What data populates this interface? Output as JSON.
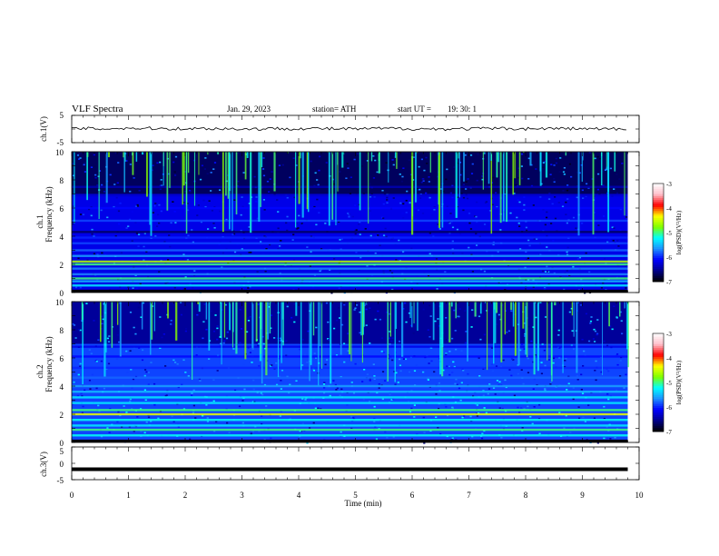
{
  "header": {
    "title": "VLF  Spectra",
    "date": "Jan. 29, 2023",
    "station": "station= ATH",
    "start_label": "start  UT  =",
    "start_time": "19: 30: 1"
  },
  "colors": {
    "colormap": [
      "#000000",
      "#00008b",
      "#0000ff",
      "#1e90ff",
      "#00ffff",
      "#7fff00",
      "#ffff00",
      "#ff0000",
      "#ffc0cb",
      "#ffffff"
    ],
    "trace": "#000000"
  },
  "chart_data": [
    {
      "type": "line",
      "panel": "ch1-waveform",
      "ylabel": "ch.1(V)",
      "ylim": [
        -5,
        5
      ],
      "yticks": [
        "5",
        "-5"
      ],
      "x": [
        0,
        0.5,
        1,
        1.5,
        2,
        2.5,
        3,
        3.5,
        4,
        4.5,
        5,
        5.5,
        6,
        6.5,
        7,
        7.5,
        8,
        8.5,
        9,
        9.5,
        9.8
      ],
      "y": [
        0.2,
        0.1,
        0.3,
        0.2,
        0.1,
        0.2,
        0.0,
        0.1,
        0.2,
        0.1,
        0.0,
        0.2,
        0.1,
        0.0,
        0.1,
        0.2,
        0.1,
        0.2,
        0.1,
        0.0,
        -0.1
      ]
    },
    {
      "type": "heatmap",
      "panel": "ch1-spectrogram",
      "ylabel_top": "ch.1",
      "ylabel": "Frequency  (kHz)",
      "ylim": [
        0,
        10
      ],
      "yticks": [
        "0",
        "2",
        "4",
        "6",
        "8",
        "10"
      ],
      "xlim": [
        0,
        9.8
      ],
      "colorbar": {
        "label": "log(PSD)(V²/Hz)",
        "ticks": [
          "-3",
          "-4",
          "-5",
          "-6",
          "-7"
        ],
        "range": [
          -7,
          -3
        ]
      },
      "bands_khz_level": [
        [
          0.5,
          -5.3
        ],
        [
          0.8,
          -5.5
        ],
        [
          1.0,
          -5.0
        ],
        [
          1.3,
          -5.7
        ],
        [
          1.7,
          -5.7
        ],
        [
          2.0,
          -5.0
        ],
        [
          2.2,
          -4.6
        ],
        [
          2.6,
          -5.6
        ],
        [
          3.0,
          -5.8
        ],
        [
          3.5,
          -5.9
        ],
        [
          3.9,
          -6.0
        ],
        [
          4.3,
          -6.7
        ],
        [
          5.1,
          -5.9
        ],
        [
          6.0,
          -6.1
        ],
        [
          6.9,
          -6.3
        ],
        [
          7.5,
          -6.4
        ]
      ],
      "background_log_psd": -6.2,
      "upper_background_log_psd": -6.7
    },
    {
      "type": "heatmap",
      "panel": "ch2-spectrogram",
      "ylabel_top": "ch.2",
      "ylabel": "Frequency  (kHz)",
      "ylim": [
        0,
        10
      ],
      "yticks": [
        "0",
        "2",
        "4",
        "6",
        "8",
        "10"
      ],
      "xlim": [
        0,
        9.8
      ],
      "colorbar": {
        "label": "log(PSD)(V²/Hz)",
        "ticks": [
          "-3",
          "-4",
          "-5",
          "-6",
          "-7"
        ],
        "range": [
          -7,
          -3
        ]
      },
      "bands_khz_level": [
        [
          0.5,
          -5.2
        ],
        [
          0.9,
          -5.0
        ],
        [
          1.2,
          -5.3
        ],
        [
          1.6,
          -5.2
        ],
        [
          2.0,
          -4.4
        ],
        [
          2.3,
          -5.0
        ],
        [
          2.8,
          -5.3
        ],
        [
          3.2,
          -5.3
        ],
        [
          3.6,
          -5.5
        ],
        [
          4.0,
          -5.6
        ],
        [
          4.6,
          -5.8
        ],
        [
          5.3,
          -6.0
        ],
        [
          6.1,
          -6.1
        ],
        [
          6.8,
          -6.2
        ]
      ],
      "background_log_psd": -5.9,
      "upper_background_log_psd": -6.5
    },
    {
      "type": "line",
      "panel": "ch3-waveform",
      "ylabel": "ch.3(V)",
      "ylim": [
        -5,
        5
      ],
      "yticks": [
        "5",
        "0",
        "-5"
      ],
      "x": [
        0,
        9.8
      ],
      "y": [
        -1.8,
        -1.8
      ]
    }
  ],
  "xaxis": {
    "label": "Time  (min)",
    "ticks": [
      "0",
      "1",
      "2",
      "3",
      "4",
      "5",
      "6",
      "7",
      "8",
      "9",
      "10"
    ],
    "xlim": [
      0,
      10
    ]
  }
}
